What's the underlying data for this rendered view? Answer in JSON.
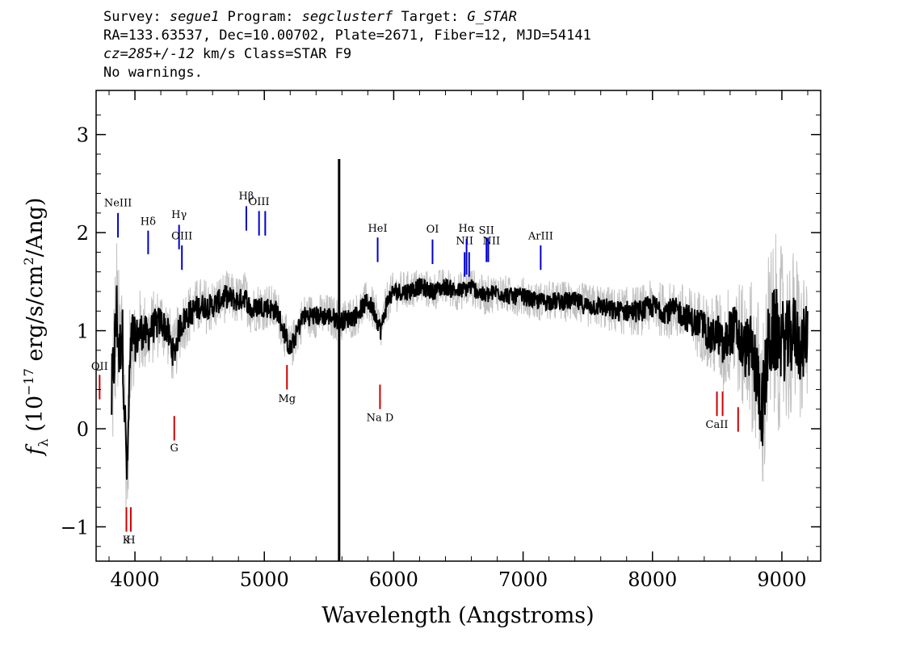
{
  "header": {
    "line1": {
      "survey_label": "Survey: ",
      "survey": "segue1",
      "program_label": " Program: ",
      "program": "segclusterf",
      "target_label": " Target: ",
      "target": "G_STAR"
    },
    "line2": "RA=133.63537, Dec=10.00702, Plate=2671, Fiber=12, MJD=54141",
    "line3": {
      "cz": "cz=285+/-12",
      "rest": " km/s Class=STAR F9"
    },
    "line4": "No warnings."
  },
  "chart_data": {
    "type": "line",
    "title": "",
    "xlabel": "Wavelength (Angstroms)",
    "ylabel": "f_λ (10^-17 erg/s/cm²/Ang)",
    "ylabel_parts": {
      "f": "f",
      "f_sub": "λ",
      "unit_a": " (10",
      "exp": "−17",
      "unit_b": " erg/s/cm",
      "exp2": "2",
      "unit_c": "/Ang)"
    },
    "xlim": [
      3700,
      9300
    ],
    "ylim": [
      -1.35,
      3.45
    ],
    "x_ticks": [
      4000,
      5000,
      6000,
      7000,
      8000,
      9000
    ],
    "x_tick_labels": [
      "4000",
      "5000",
      "6000",
      "7000",
      "8000",
      "9000"
    ],
    "y_ticks": [
      -1,
      0,
      1,
      2,
      3
    ],
    "y_tick_labels": [
      "−1",
      "0",
      "1",
      "2",
      "3"
    ],
    "grid": false,
    "series": [
      {
        "role": "flux",
        "color": "#000000",
        "x": [
          3820,
          3860,
          3880,
          3900,
          3920,
          3940,
          3960,
          3980,
          4000,
          4050,
          4100,
          4150,
          4200,
          4250,
          4300,
          4350,
          4400,
          4450,
          4500,
          4600,
          4700,
          4800,
          4850,
          4900,
          4950,
          5000,
          5100,
          5200,
          5300,
          5400,
          5500,
          5600,
          5700,
          5800,
          5850,
          5900,
          5950,
          6000,
          6100,
          6200,
          6300,
          6400,
          6500,
          6600,
          6700,
          6800,
          6900,
          7000,
          7100,
          7200,
          7300,
          7400,
          7500,
          7600,
          7700,
          7800,
          7900,
          8000,
          8100,
          8200,
          8300,
          8400,
          8450,
          8500,
          8550,
          8600,
          8650,
          8700,
          8750,
          8800,
          8850,
          8900,
          8950,
          9000,
          9050,
          9100,
          9150,
          9200
        ],
        "y": [
          0.3,
          1.2,
          0.7,
          1.1,
          0.2,
          -0.5,
          0.6,
          1.0,
          0.9,
          1.0,
          0.95,
          1.05,
          1.1,
          1.0,
          0.75,
          1.05,
          1.15,
          1.2,
          1.25,
          1.25,
          1.35,
          1.3,
          1.35,
          1.2,
          1.25,
          1.25,
          1.2,
          0.8,
          1.15,
          1.15,
          1.15,
          1.1,
          1.15,
          1.3,
          1.2,
          1.0,
          1.3,
          1.4,
          1.4,
          1.45,
          1.4,
          1.45,
          1.4,
          1.45,
          1.35,
          1.4,
          1.35,
          1.35,
          1.3,
          1.3,
          1.3,
          1.3,
          1.25,
          1.25,
          1.2,
          1.2,
          1.2,
          1.25,
          1.2,
          1.2,
          1.1,
          1.05,
          0.9,
          1.0,
          0.8,
          1.0,
          1.0,
          0.8,
          0.85,
          0.6,
          0.2,
          0.9,
          1.0,
          0.9,
          0.9,
          1.0,
          0.8,
          1.0
        ]
      },
      {
        "role": "error",
        "color": "#c0c0c0",
        "x": [
          3820,
          3860,
          3880,
          3900,
          3920,
          3940,
          3960,
          3980,
          4000,
          4050,
          4100,
          4150,
          4200,
          4250,
          4300,
          4350,
          4400,
          4450,
          4500,
          4600,
          4700,
          4800,
          4850,
          4900,
          4950,
          5000,
          5100,
          5200,
          5300,
          5400,
          5500,
          5600,
          5700,
          5800,
          5850,
          5900,
          5950,
          6000,
          6100,
          6200,
          6300,
          6400,
          6500,
          6600,
          6700,
          6800,
          6900,
          7000,
          7100,
          7200,
          7300,
          7400,
          7500,
          7600,
          7700,
          7800,
          7900,
          8000,
          8100,
          8200,
          8300,
          8400,
          8450,
          8500,
          8550,
          8600,
          8650,
          8700,
          8750,
          8800,
          8850,
          8900,
          8950,
          9000,
          9050,
          9100,
          9150,
          9200
        ],
        "y": [
          0.9,
          0.85,
          0.8,
          0.75,
          0.7,
          0.65,
          0.6,
          0.55,
          0.5,
          0.45,
          0.4,
          0.38,
          0.36,
          0.35,
          0.34,
          0.33,
          0.32,
          0.31,
          0.3,
          0.28,
          0.27,
          0.26,
          0.26,
          0.25,
          0.25,
          0.25,
          0.24,
          0.24,
          0.23,
          0.23,
          0.23,
          0.23,
          0.22,
          0.22,
          0.22,
          0.22,
          0.22,
          0.21,
          0.21,
          0.2,
          0.2,
          0.2,
          0.2,
          0.2,
          0.2,
          0.2,
          0.2,
          0.2,
          0.2,
          0.21,
          0.21,
          0.22,
          0.22,
          0.23,
          0.24,
          0.25,
          0.26,
          0.27,
          0.29,
          0.31,
          0.34,
          0.38,
          0.42,
          0.46,
          0.5,
          0.55,
          0.6,
          0.65,
          0.75,
          0.85,
          0.95,
          1.0,
          1.0,
          0.95,
          0.9,
          0.85,
          0.8,
          0.75
        ]
      }
    ],
    "sky_spike": {
      "x": 5578,
      "y": 2.75
    },
    "emission_lines": [
      {
        "label": "NeIII",
        "x": 3869,
        "y_low": 1.95,
        "y_high": 2.2,
        "label_y": 2.27
      },
      {
        "label": "Hδ",
        "x": 4102,
        "y_low": 1.78,
        "y_high": 2.02,
        "label_y": 2.08
      },
      {
        "label": "Hγ",
        "x": 4341,
        "y_low": 1.83,
        "y_high": 2.08,
        "label_y": 2.15
      },
      {
        "label": "OIII",
        "x": 4363,
        "y_low": 1.62,
        "y_high": 1.87,
        "label_y": 1.93
      },
      {
        "label": "Hβ",
        "x": 4861,
        "y_low": 2.02,
        "y_high": 2.27,
        "label_y": 2.34
      },
      {
        "label": "OIII",
        "x": 4959,
        "y_low": 1.97,
        "y_high": 2.22,
        "label_y": 2.28
      },
      {
        "label": "",
        "x": 5007,
        "y_low": 1.97,
        "y_high": 2.22,
        "label_y": 2.28
      },
      {
        "label": "HeI",
        "x": 5876,
        "y_low": 1.7,
        "y_high": 1.95,
        "label_y": 2.01
      },
      {
        "label": "OI",
        "x": 6300,
        "y_low": 1.68,
        "y_high": 1.93,
        "label_y": 2.0
      },
      {
        "label": "NII",
        "x": 6548,
        "y_low": 1.55,
        "y_high": 1.8,
        "label_y": 1.88
      },
      {
        "label": "Hα",
        "x": 6563,
        "y_low": 1.57,
        "y_high": 1.94,
        "label_y": 2.01
      },
      {
        "label": "",
        "x": 6583,
        "y_low": 1.55,
        "y_high": 1.8,
        "label_y": 1.88
      },
      {
        "label": "SII",
        "x": 6717,
        "y_low": 1.7,
        "y_high": 1.95,
        "label_y": 1.99
      },
      {
        "label": "",
        "x": 6731,
        "y_low": 1.7,
        "y_high": 1.95,
        "label_y": 1.99
      },
      {
        "label": "NII",
        "x": 6755,
        "y_low": 1.0,
        "y_high": 1.0,
        "label_y": 1.88
      },
      {
        "label": "ArIII",
        "x": 7136,
        "y_low": 1.62,
        "y_high": 1.87,
        "label_y": 1.93
      }
    ],
    "absorption_lines": [
      {
        "label": "OII",
        "x": 3727,
        "y_low": 0.3,
        "y_high": 0.55,
        "label_y": 0.6
      },
      {
        "label": "K",
        "x": 3934,
        "y_low": -1.05,
        "y_high": -0.8,
        "label_y": -1.17
      },
      {
        "label": "H",
        "x": 3968,
        "y_low": -1.05,
        "y_high": -0.8,
        "label_y": -1.17
      },
      {
        "label": "G",
        "x": 4304,
        "y_low": -0.12,
        "y_high": 0.13,
        "label_y": -0.23
      },
      {
        "label": "Mg",
        "x": 5175,
        "y_low": 0.4,
        "y_high": 0.65,
        "label_y": 0.27
      },
      {
        "label": "Na D",
        "x": 5894,
        "y_low": 0.2,
        "y_high": 0.45,
        "label_y": 0.08
      },
      {
        "label": "CaII",
        "x": 8498,
        "y_low": 0.13,
        "y_high": 0.38,
        "label_y": 0.01
      },
      {
        "label": "",
        "x": 8542,
        "y_low": 0.13,
        "y_high": 0.38,
        "label_y": 0.01
      },
      {
        "label": "",
        "x": 8662,
        "y_low": -0.03,
        "y_high": 0.22,
        "label_y": 0.01
      }
    ],
    "colors": {
      "emission": "#0000cc",
      "absorption": "#cc0000",
      "flux": "#000000",
      "error": "#c0c0c0"
    }
  }
}
